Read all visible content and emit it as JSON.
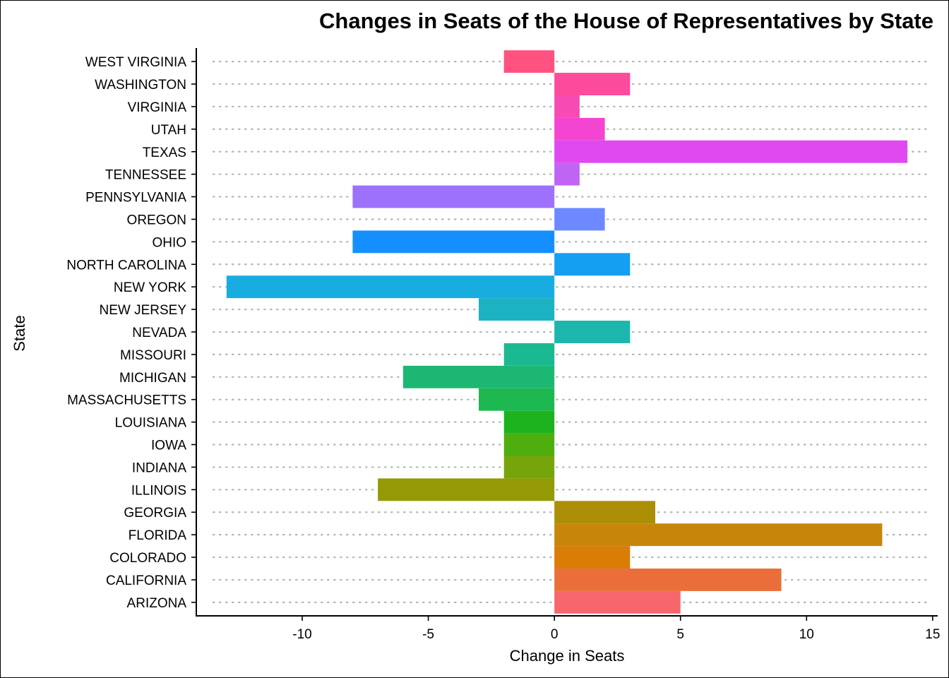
{
  "chart_data": {
    "type": "bar",
    "orientation": "horizontal",
    "title": "Changes in Seats of the House of Representatives by State",
    "xlabel": "Change in Seats",
    "ylabel": "State",
    "xlim": [
      -14.2,
      15.2
    ],
    "xticks": [
      -10,
      -5,
      0,
      5,
      10,
      15
    ],
    "xtick_labels": [
      "-10",
      "-5",
      "0",
      "5",
      "10",
      "15"
    ],
    "grid": "horizontal-dotted",
    "legend": "none",
    "categories": [
      "ARIZONA",
      "CALIFORNIA",
      "COLORADO",
      "FLORIDA",
      "GEORGIA",
      "ILLINOIS",
      "INDIANA",
      "IOWA",
      "LOUISIANA",
      "MASSACHUSETTS",
      "MICHIGAN",
      "MISSOURI",
      "NEVADA",
      "NEW JERSEY",
      "NEW YORK",
      "NORTH CAROLINA",
      "OHIO",
      "OREGON",
      "PENNSYLVANIA",
      "TENNESSEE",
      "TEXAS",
      "UTAH",
      "VIRGINIA",
      "WASHINGTON",
      "WEST VIRGINIA"
    ],
    "values": [
      5,
      9,
      3,
      13,
      4,
      -7,
      -2,
      -2,
      -2,
      -3,
      -6,
      -2,
      3,
      -3,
      -13,
      3,
      -8,
      2,
      -8,
      1,
      14,
      2,
      1,
      3,
      -2
    ],
    "colors": [
      "#F8666D",
      "#EB6E3A",
      "#D97D06",
      "#C7860A",
      "#AC8E06",
      "#939A05",
      "#76A50B",
      "#4DAE0E",
      "#1CB31E",
      "#1DB84F",
      "#1CB873",
      "#1BB991",
      "#1BB7AC",
      "#1BB2C3",
      "#19ACE1",
      "#149FF2",
      "#158FFF",
      "#6C89FF",
      "#9D71FB",
      "#C064F5",
      "#E049F0",
      "#F344D2",
      "#F74AB4",
      "#FC4A9D",
      "#FF5281"
    ]
  }
}
